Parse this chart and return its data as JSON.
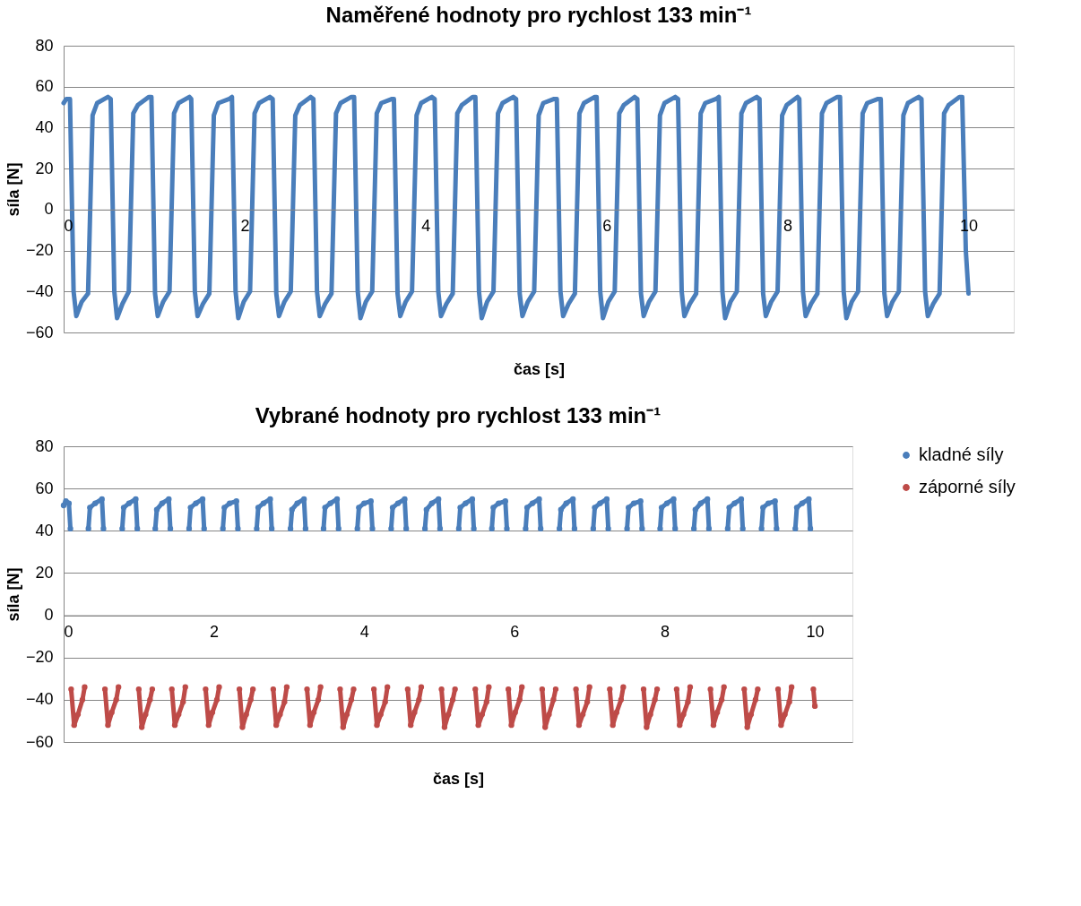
{
  "chart_data": [
    {
      "type": "line",
      "title": "Naměřené hodnoty pro rychlost 133 min⁻¹",
      "xlabel": "čas [s]",
      "ylabel": "síla [N]",
      "xlim": [
        0,
        10.5
      ],
      "xticks": [
        0,
        2,
        4,
        6,
        8,
        10
      ],
      "ylim": [
        -60,
        80
      ],
      "yticks": [
        -60,
        -40,
        -20,
        0,
        20,
        40,
        60,
        80
      ],
      "grid": "y",
      "legend": false,
      "marker": "none",
      "line_style": "solid",
      "series": [
        {
          "color": "#4a7ebb",
          "x": [
            0,
            0.03,
            0.07,
            0.11,
            0.14,
            0.2,
            0.27,
            0.32,
            0.37,
            0.49,
            0.52,
            0.56,
            0.59,
            0.65,
            0.72,
            0.77,
            0.82,
            0.94,
            0.97,
            1.01,
            1.04,
            1.1,
            1.17,
            1.22,
            1.27,
            1.39,
            1.41,
            1.45,
            1.48,
            1.54,
            1.61,
            1.66,
            1.71,
            1.83,
            1.86,
            1.9,
            1.93,
            1.99,
            2.06,
            2.11,
            2.16,
            2.28,
            2.31,
            2.35,
            2.38,
            2.44,
            2.51,
            2.56,
            2.61,
            2.73,
            2.76,
            2.8,
            2.83,
            2.89,
            2.96,
            3.01,
            3.06,
            3.18,
            3.21,
            3.25,
            3.28,
            3.34,
            3.41,
            3.46,
            3.51,
            3.63,
            3.65,
            3.69,
            3.72,
            3.78,
            3.85,
            3.9,
            3.95,
            4.07,
            4.1,
            4.14,
            4.17,
            4.23,
            4.3,
            4.35,
            4.4,
            4.52,
            4.55,
            4.59,
            4.62,
            4.68,
            4.75,
            4.8,
            4.85,
            4.97,
            5.0,
            5.04,
            5.07,
            5.13,
            5.2,
            5.25,
            5.3,
            5.42,
            5.45,
            5.49,
            5.52,
            5.58,
            5.65,
            5.7,
            5.75,
            5.87,
            5.89,
            5.93,
            5.96,
            6.02,
            6.09,
            6.14,
            6.19,
            6.31,
            6.34,
            6.38,
            6.41,
            6.47,
            6.54,
            6.59,
            6.64,
            6.76,
            6.79,
            6.83,
            6.86,
            6.92,
            6.99,
            7.04,
            7.09,
            7.21,
            7.24,
            7.28,
            7.31,
            7.37,
            7.44,
            7.49,
            7.54,
            7.66,
            7.69,
            7.73,
            7.76,
            7.82,
            7.89,
            7.94,
            7.99,
            8.11,
            8.13,
            8.17,
            8.2,
            8.26,
            8.33,
            8.38,
            8.43,
            8.55,
            8.58,
            8.62,
            8.65,
            8.71,
            8.78,
            8.83,
            8.88,
            9.0,
            9.03,
            9.07,
            9.1,
            9.16,
            9.23,
            9.28,
            9.33,
            9.45,
            9.48,
            9.52,
            9.55,
            9.61,
            9.68,
            9.73,
            9.78,
            9.9,
            9.93,
            9.97,
            10.0
          ],
          "values": [
            52,
            54,
            54,
            -40,
            -52,
            -45,
            -41,
            46,
            52,
            55,
            54,
            -40,
            -53,
            -46,
            -40,
            47,
            51,
            55,
            55,
            -41,
            -52,
            -45,
            -40,
            47,
            52,
            55,
            54,
            -40,
            -52,
            -46,
            -41,
            46,
            52,
            54,
            55,
            -40,
            -53,
            -45,
            -40,
            47,
            52,
            55,
            54,
            -41,
            -52,
            -45,
            -40,
            46,
            51,
            55,
            54,
            -40,
            -52,
            -46,
            -41,
            47,
            52,
            55,
            55,
            -40,
            -53,
            -45,
            -40,
            47,
            52,
            54,
            54,
            -41,
            -52,
            -45,
            -40,
            46,
            52,
            55,
            54,
            -40,
            -52,
            -46,
            -41,
            47,
            51,
            55,
            55,
            -40,
            -53,
            -45,
            -40,
            47,
            52,
            55,
            54,
            -41,
            -52,
            -45,
            -40,
            46,
            52,
            54,
            54,
            -40,
            -52,
            -46,
            -41,
            47,
            52,
            55,
            55,
            -40,
            -53,
            -45,
            -40,
            47,
            51,
            55,
            54,
            -41,
            -52,
            -45,
            -40,
            46,
            52,
            55,
            54,
            -40,
            -52,
            -46,
            -41,
            47,
            52,
            54,
            55,
            -40,
            -53,
            -45,
            -40,
            47,
            52,
            55,
            54,
            -41,
            -52,
            -45,
            -40,
            46,
            51,
            55,
            54,
            -40,
            -52,
            -46,
            -41,
            47,
            52,
            55,
            55,
            -40,
            -53,
            -45,
            -40,
            47,
            52,
            54,
            54,
            -41,
            -52,
            -45,
            -40,
            46,
            52,
            55,
            54,
            -40,
            -52,
            -46,
            -41,
            47,
            51,
            55,
            55,
            -20,
            -41
          ]
        }
      ]
    },
    {
      "type": "line",
      "title": "Vybrané hodnoty pro rychlost 133 min⁻¹",
      "xlabel": "čas [s]",
      "ylabel": "síla [N]",
      "xlim": [
        0,
        10.5
      ],
      "xticks": [
        0,
        2,
        4,
        6,
        8,
        10
      ],
      "ylim": [
        -60,
        80
      ],
      "yticks": [
        -60,
        -40,
        -20,
        0,
        20,
        40,
        60,
        80
      ],
      "grid": "y",
      "legend": "right",
      "marker": "circle",
      "line_style": "solid",
      "series": [
        {
          "name": "kladné síly",
          "color": "#4a7ebb",
          "x": [
            0,
            0.03,
            0.07,
            0.09,
            0.1,
            0.33,
            0.35,
            0.42,
            0.51,
            0.53,
            0.54,
            0.78,
            0.8,
            0.87,
            0.96,
            0.98,
            0.99,
            1.22,
            1.24,
            1.31,
            1.4,
            1.42,
            1.43,
            1.67,
            1.69,
            1.76,
            1.85,
            1.87,
            1.88,
            2.12,
            2.14,
            2.21,
            2.3,
            2.32,
            2.33,
            2.57,
            2.59,
            2.66,
            2.75,
            2.77,
            2.78,
            3.02,
            3.04,
            3.11,
            3.2,
            3.22,
            3.23,
            3.46,
            3.48,
            3.55,
            3.64,
            3.66,
            3.67,
            3.91,
            3.93,
            4.0,
            4.09,
            4.11,
            4.12,
            4.36,
            4.38,
            4.45,
            4.54,
            4.56,
            4.57,
            4.81,
            4.83,
            4.9,
            4.99,
            5.01,
            5.02,
            5.26,
            5.28,
            5.35,
            5.44,
            5.46,
            5.47,
            5.7,
            5.72,
            5.79,
            5.88,
            5.9,
            5.91,
            6.15,
            6.17,
            6.24,
            6.33,
            6.35,
            6.36,
            6.6,
            6.62,
            6.69,
            6.78,
            6.8,
            6.81,
            7.05,
            7.07,
            7.14,
            7.23,
            7.25,
            7.26,
            7.5,
            7.52,
            7.59,
            7.68,
            7.7,
            7.71,
            7.94,
            7.96,
            8.03,
            8.12,
            8.14,
            8.15,
            8.39,
            8.41,
            8.48,
            8.57,
            8.59,
            8.6,
            8.84,
            8.86,
            8.93,
            9.02,
            9.04,
            9.05,
            9.29,
            9.31,
            9.38,
            9.47,
            9.49,
            9.5,
            9.74,
            9.76,
            9.83,
            9.92,
            9.94
          ],
          "values": [
            52,
            54,
            53,
            41,
            null,
            41,
            51,
            53,
            55,
            41,
            null,
            41,
            51,
            53,
            55,
            41,
            null,
            41,
            50,
            53,
            55,
            41,
            null,
            41,
            51,
            53,
            55,
            41,
            null,
            41,
            51,
            53,
            54,
            41,
            null,
            41,
            51,
            53,
            55,
            41,
            null,
            41,
            50,
            53,
            55,
            41,
            null,
            41,
            51,
            53,
            55,
            41,
            null,
            41,
            51,
            53,
            54,
            41,
            null,
            41,
            51,
            53,
            55,
            41,
            null,
            41,
            50,
            53,
            55,
            41,
            null,
            41,
            51,
            53,
            55,
            41,
            null,
            41,
            51,
            53,
            54,
            41,
            null,
            41,
            51,
            53,
            55,
            41,
            null,
            41,
            50,
            53,
            55,
            41,
            null,
            41,
            51,
            53,
            55,
            41,
            null,
            41,
            51,
            53,
            54,
            41,
            null,
            41,
            51,
            53,
            55,
            41,
            null,
            41,
            50,
            53,
            55,
            41,
            null,
            41,
            51,
            53,
            55,
            41,
            null,
            41,
            51,
            53,
            54,
            41,
            null,
            41,
            51,
            53,
            55,
            41
          ]
        },
        {
          "name": "záporné síly",
          "color": "#be4b48",
          "x": [
            0.1,
            0.14,
            0.19,
            0.25,
            0.28,
            0.29,
            0.55,
            0.59,
            0.64,
            0.7,
            0.73,
            0.74,
            1.0,
            1.04,
            1.09,
            1.15,
            1.18,
            1.19,
            1.44,
            1.48,
            1.53,
            1.59,
            1.62,
            1.63,
            1.89,
            1.93,
            1.98,
            2.04,
            2.07,
            2.08,
            2.34,
            2.38,
            2.43,
            2.49,
            2.52,
            2.53,
            2.79,
            2.83,
            2.88,
            2.94,
            2.97,
            2.98,
            3.24,
            3.28,
            3.33,
            3.39,
            3.42,
            3.43,
            3.68,
            3.72,
            3.77,
            3.83,
            3.86,
            3.87,
            4.13,
            4.17,
            4.22,
            4.28,
            4.31,
            4.32,
            4.58,
            4.62,
            4.67,
            4.73,
            4.76,
            4.77,
            5.03,
            5.07,
            5.12,
            5.18,
            5.21,
            5.22,
            5.48,
            5.52,
            5.57,
            5.63,
            5.66,
            5.67,
            5.92,
            5.96,
            6.01,
            6.07,
            6.1,
            6.11,
            6.37,
            6.41,
            6.46,
            6.52,
            6.55,
            6.56,
            6.82,
            6.86,
            6.91,
            6.97,
            7.0,
            7.01,
            7.27,
            7.31,
            7.36,
            7.42,
            7.45,
            7.46,
            7.72,
            7.76,
            7.81,
            7.87,
            7.9,
            7.91,
            8.16,
            8.2,
            8.25,
            8.31,
            8.34,
            8.35,
            8.61,
            8.65,
            8.7,
            8.76,
            8.79,
            8.8,
            9.06,
            9.1,
            9.15,
            9.21,
            9.24,
            9.25,
            9.51,
            9.55,
            9.6,
            9.66,
            9.69,
            9.7,
            9.98,
            10.0
          ],
          "values": [
            -35,
            -52,
            -47,
            -40,
            -34,
            null,
            -35,
            -52,
            -46,
            -40,
            -34,
            null,
            -35,
            -53,
            -47,
            -40,
            -35,
            null,
            -35,
            -52,
            -47,
            -41,
            -34,
            null,
            -35,
            -52,
            -46,
            -40,
            -34,
            null,
            -35,
            -53,
            -47,
            -40,
            -35,
            null,
            -35,
            -52,
            -47,
            -41,
            -34,
            null,
            -35,
            -52,
            -46,
            -40,
            -34,
            null,
            -35,
            -53,
            -47,
            -40,
            -35,
            null,
            -35,
            -52,
            -47,
            -41,
            -34,
            null,
            -35,
            -52,
            -46,
            -40,
            -34,
            null,
            -35,
            -53,
            -47,
            -40,
            -35,
            null,
            -35,
            -52,
            -47,
            -41,
            -34,
            null,
            -35,
            -52,
            -46,
            -40,
            -34,
            null,
            -35,
            -53,
            -47,
            -40,
            -35,
            null,
            -35,
            -52,
            -47,
            -41,
            -34,
            null,
            -35,
            -52,
            -46,
            -40,
            -34,
            null,
            -35,
            -53,
            -47,
            -40,
            -35,
            null,
            -35,
            -52,
            -47,
            -41,
            -34,
            null,
            -35,
            -52,
            -46,
            -40,
            -34,
            null,
            -35,
            -53,
            -47,
            -40,
            -35,
            null,
            -35,
            -52,
            -47,
            -41,
            -34,
            null,
            -35,
            -43
          ]
        }
      ]
    }
  ]
}
